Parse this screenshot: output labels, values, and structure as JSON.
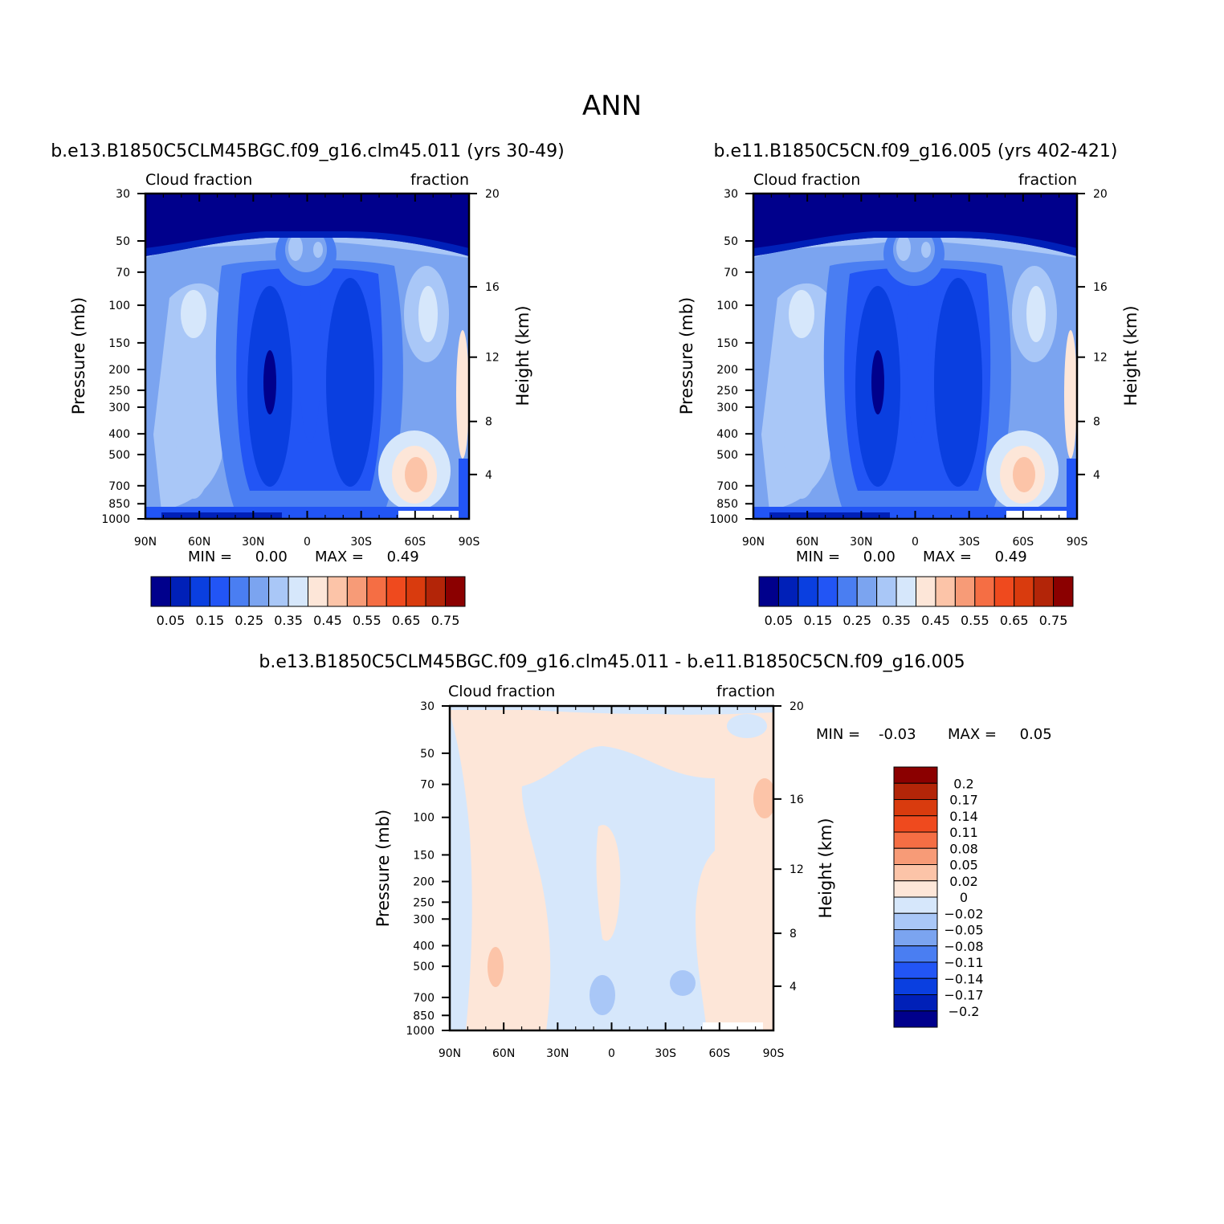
{
  "figure_title": "ANN",
  "chart_data": [
    {
      "type": "heatmap",
      "title": "b.e13.B1850C5CLM45BGC.f09_g16.clm45.011 (yrs 30-49)",
      "left_label": "Cloud fraction",
      "right_label": "fraction",
      "xlabel": "",
      "ylabel": "Pressure (mb)",
      "ylabel_right": "Height (km)",
      "x_ticks": [
        "90N",
        "60N",
        "30N",
        "0",
        "30S",
        "60S",
        "90S"
      ],
      "y_ticks": [
        "30",
        "50",
        "70",
        "100",
        "150",
        "200",
        "250",
        "300",
        "400",
        "500",
        "700",
        "850",
        "1000"
      ],
      "y_right_ticks": [
        "20",
        "16",
        "12",
        "8",
        "4"
      ],
      "ylim": [
        1000,
        30
      ],
      "y_scale": "log",
      "min_text": "MIN =     0.00",
      "max_text": "MAX =     0.49",
      "colorbar_labels": [
        "0.05",
        "0.15",
        "0.25",
        "0.35",
        "0.45",
        "0.55",
        "0.65",
        "0.75"
      ]
    },
    {
      "type": "heatmap",
      "title": "b.e11.B1850C5CN.f09_g16.005 (yrs 402-421)",
      "left_label": "Cloud fraction",
      "right_label": "fraction",
      "xlabel": "",
      "ylabel": "Pressure (mb)",
      "ylabel_right": "Height (km)",
      "x_ticks": [
        "90N",
        "60N",
        "30N",
        "0",
        "30S",
        "60S",
        "90S"
      ],
      "y_ticks": [
        "30",
        "50",
        "70",
        "100",
        "150",
        "200",
        "250",
        "300",
        "400",
        "500",
        "700",
        "850",
        "1000"
      ],
      "y_right_ticks": [
        "20",
        "16",
        "12",
        "8",
        "4"
      ],
      "ylim": [
        1000,
        30
      ],
      "y_scale": "log",
      "min_text": "MIN =     0.00",
      "max_text": "MAX =     0.49",
      "colorbar_labels": [
        "0.05",
        "0.15",
        "0.25",
        "0.35",
        "0.45",
        "0.55",
        "0.65",
        "0.75"
      ]
    },
    {
      "type": "heatmap",
      "title": "b.e13.B1850C5CLM45BGC.f09_g16.clm45.011 - b.e11.B1850C5CN.f09_g16.005",
      "left_label": "Cloud fraction",
      "right_label": "fraction",
      "xlabel": "",
      "ylabel": "Pressure (mb)",
      "ylabel_right": "Height (km)",
      "x_ticks": [
        "90N",
        "60N",
        "30N",
        "0",
        "30S",
        "60S",
        "90S"
      ],
      "y_ticks": [
        "30",
        "50",
        "70",
        "100",
        "150",
        "200",
        "250",
        "300",
        "400",
        "500",
        "700",
        "850",
        "1000"
      ],
      "y_right_ticks": [
        "20",
        "16",
        "12",
        "8",
        "4"
      ],
      "ylim": [
        1000,
        30
      ],
      "y_scale": "log",
      "min_text": "MIN =    -0.03",
      "max_text": "MAX =     0.05",
      "colorbar_labels": [
        "0.2",
        "0.17",
        "0.14",
        "0.11",
        "0.08",
        "0.05",
        "0.02",
        "0",
        "-0.02",
        "-0.05",
        "-0.08",
        "-0.11",
        "-0.14",
        "-0.17",
        "-0.2"
      ]
    }
  ],
  "palette": [
    "#00008c",
    "#0020b8",
    "#0a3fe0",
    "#2255f5",
    "#4a7ef2",
    "#7ba4f0",
    "#a9c7f7",
    "#d6e7fb",
    "#fde6d8",
    "#fcc4a8",
    "#f79b77",
    "#f56e44",
    "#ef4a1e",
    "#d93b0e",
    "#b32508",
    "#8b0000"
  ]
}
